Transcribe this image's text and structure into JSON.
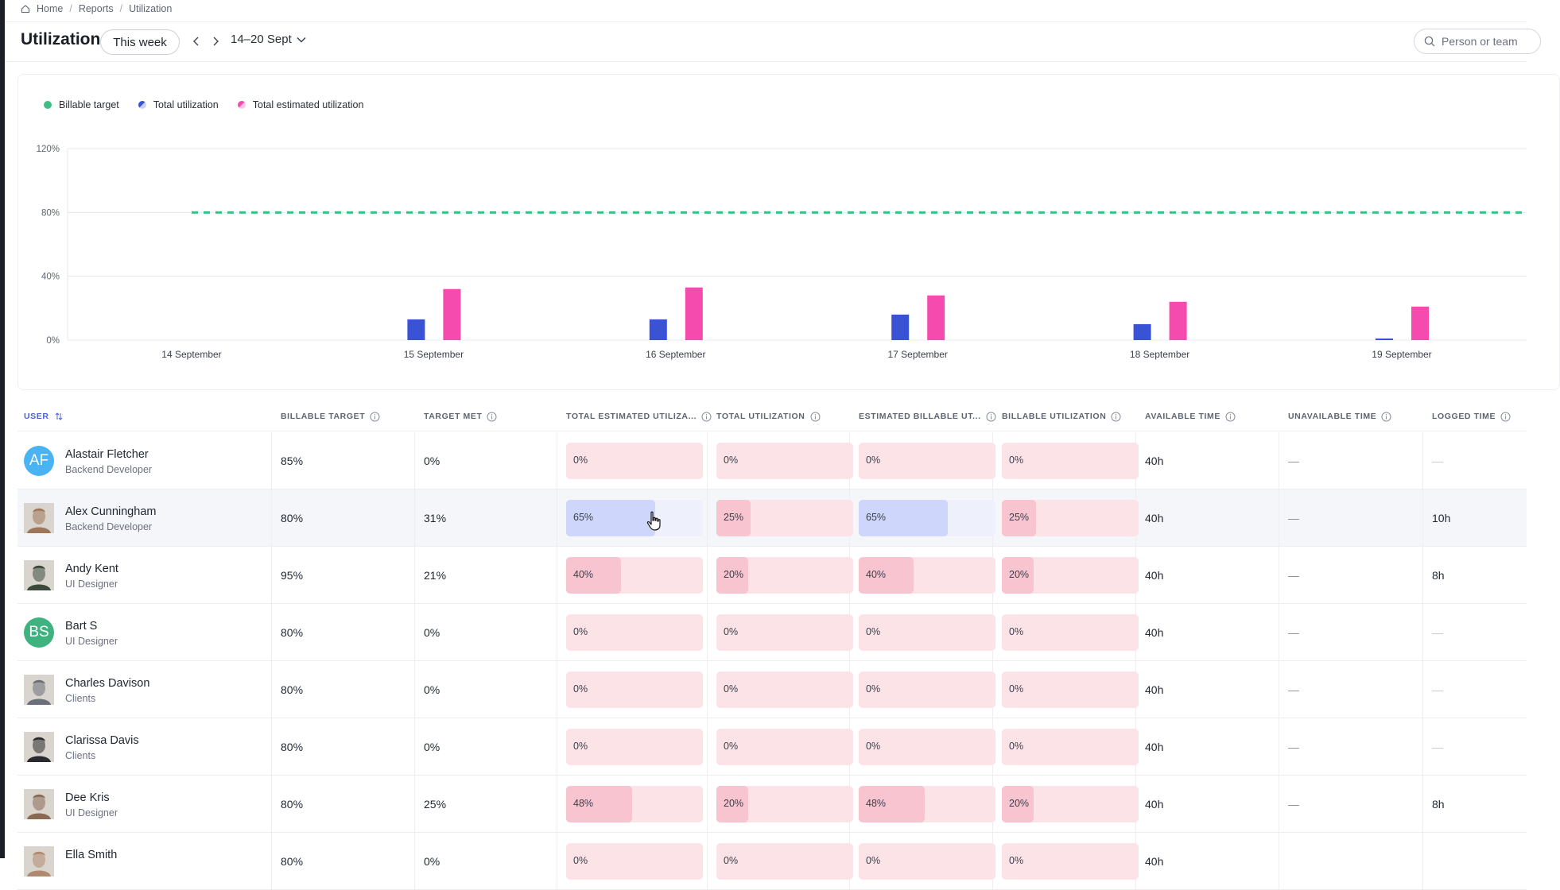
{
  "breadcrumb": {
    "items": [
      "Home",
      "Reports",
      "Utilization"
    ],
    "icon": "home-icon"
  },
  "header": {
    "title": "Utilization",
    "period_button": "This week",
    "date_range": "14–20 Sept",
    "search_placeholder": "Person or team"
  },
  "colors": {
    "billable_target": "#3fbf84",
    "total_utilization": "#3a52d4",
    "total_estimated": "#f54aae",
    "grid": "#e6e8ec",
    "bar_pink": "#fce3e7",
    "bar_pink_fill": "#f8c4cf",
    "bar_blue": "#eef0fb",
    "bar_blue_fill": "#cfd6fb"
  },
  "chart_data": {
    "type": "bar",
    "categories": [
      "14 September",
      "15 September",
      "16 September",
      "17 September",
      "18 September",
      "19 September"
    ],
    "series": [
      {
        "name": "Total utilization",
        "values": [
          0,
          13,
          13,
          16,
          10,
          1
        ]
      },
      {
        "name": "Total estimated utilization",
        "values": [
          0,
          32,
          33,
          28,
          24,
          21
        ]
      }
    ],
    "target_line": {
      "name": "Billable target",
      "value": 80
    },
    "yticks": [
      "0%",
      "40%",
      "80%",
      "120%"
    ],
    "ylim": [
      0,
      120
    ],
    "legend": [
      "Billable target",
      "Total utilization",
      "Total estimated utilization"
    ],
    "legend_position": "top-left",
    "grid": true
  },
  "table": {
    "columns": [
      "USER",
      "BILLABLE TARGET",
      "TARGET MET",
      "TOTAL ESTIMATED UTILIZA...",
      "TOTAL UTILIZATION",
      "ESTIMATED BILLABLE UT...",
      "BILLABLE UTILIZATION",
      "AVAILABLE TIME",
      "UNAVAILABLE TIME",
      "LOGGED TIME"
    ],
    "rows": [
      {
        "name": "Alastair Fletcher",
        "role": "Backend Developer",
        "initials": "AF",
        "avatar_color": "#4ab3f4",
        "billable_target": "85%",
        "target_met": "0%",
        "tot_est": "0%",
        "tot_util": "0%",
        "est_bill": "0%",
        "bill_util": "0%",
        "tot_est_pct": 0,
        "tot_util_pct": 0,
        "est_bill_pct": 0,
        "bill_util_pct": 0,
        "available": "40h",
        "unavailable": "—",
        "logged": "—",
        "avatar_type": "initials"
      },
      {
        "name": "Alex Cunningham",
        "role": "Backend Developer",
        "initials": "",
        "avatar_color": "#a0765a",
        "billable_target": "80%",
        "target_met": "31%",
        "tot_est": "65%",
        "tot_util": "25%",
        "est_bill": "65%",
        "bill_util": "25%",
        "tot_est_pct": 65,
        "tot_util_pct": 25,
        "est_bill_pct": 65,
        "bill_util_pct": 25,
        "available": "40h",
        "unavailable": "—",
        "logged": "10h",
        "avatar_type": "photo"
      },
      {
        "name": "Andy Kent",
        "role": "UI Designer",
        "initials": "",
        "avatar_color": "#3b4a3c",
        "billable_target": "95%",
        "target_met": "21%",
        "tot_est": "40%",
        "tot_util": "20%",
        "est_bill": "40%",
        "bill_util": "20%",
        "tot_est_pct": 40,
        "tot_util_pct": 20,
        "est_bill_pct": 40,
        "bill_util_pct": 20,
        "available": "40h",
        "unavailable": "—",
        "logged": "8h",
        "avatar_type": "photo"
      },
      {
        "name": "Bart S",
        "role": "UI Designer",
        "initials": "BS",
        "avatar_color": "#3fb37f",
        "billable_target": "80%",
        "target_met": "0%",
        "tot_est": "0%",
        "tot_util": "0%",
        "est_bill": "0%",
        "bill_util": "0%",
        "tot_est_pct": 0,
        "tot_util_pct": 0,
        "est_bill_pct": 0,
        "bill_util_pct": 0,
        "available": "40h",
        "unavailable": "—",
        "logged": "—",
        "avatar_type": "initials"
      },
      {
        "name": "Charles Davison",
        "role": "Clients",
        "initials": "",
        "avatar_color": "#6b6f78",
        "billable_target": "80%",
        "target_met": "0%",
        "tot_est": "0%",
        "tot_util": "0%",
        "est_bill": "0%",
        "bill_util": "0%",
        "tot_est_pct": 0,
        "tot_util_pct": 0,
        "est_bill_pct": 0,
        "bill_util_pct": 0,
        "available": "40h",
        "unavailable": "—",
        "logged": "—",
        "avatar_type": "photo"
      },
      {
        "name": "Clarissa Davis",
        "role": "Clients",
        "initials": "",
        "avatar_color": "#2a2a2e",
        "billable_target": "80%",
        "target_met": "0%",
        "tot_est": "0%",
        "tot_util": "0%",
        "est_bill": "0%",
        "bill_util": "0%",
        "tot_est_pct": 0,
        "tot_util_pct": 0,
        "est_bill_pct": 0,
        "bill_util_pct": 0,
        "available": "40h",
        "unavailable": "—",
        "logged": "—",
        "avatar_type": "photo"
      },
      {
        "name": "Dee Kris",
        "role": "UI Designer",
        "initials": "",
        "avatar_color": "#8a6a55",
        "billable_target": "80%",
        "target_met": "25%",
        "tot_est": "48%",
        "tot_util": "20%",
        "est_bill": "48%",
        "bill_util": "20%",
        "tot_est_pct": 48,
        "tot_util_pct": 20,
        "est_bill_pct": 48,
        "bill_util_pct": 20,
        "available": "40h",
        "unavailable": "—",
        "logged": "8h",
        "avatar_type": "photo"
      },
      {
        "name": "Ella Smith",
        "role": "",
        "initials": "",
        "avatar_color": "#b08a70",
        "billable_target": "80%",
        "target_met": "0%",
        "tot_est": "0%",
        "tot_util": "0%",
        "est_bill": "0%",
        "bill_util": "0%",
        "tot_est_pct": 0,
        "tot_util_pct": 0,
        "est_bill_pct": 0,
        "bill_util_pct": 0,
        "available": "40h",
        "unavailable": "",
        "logged": "",
        "avatar_type": "photo"
      }
    ]
  }
}
